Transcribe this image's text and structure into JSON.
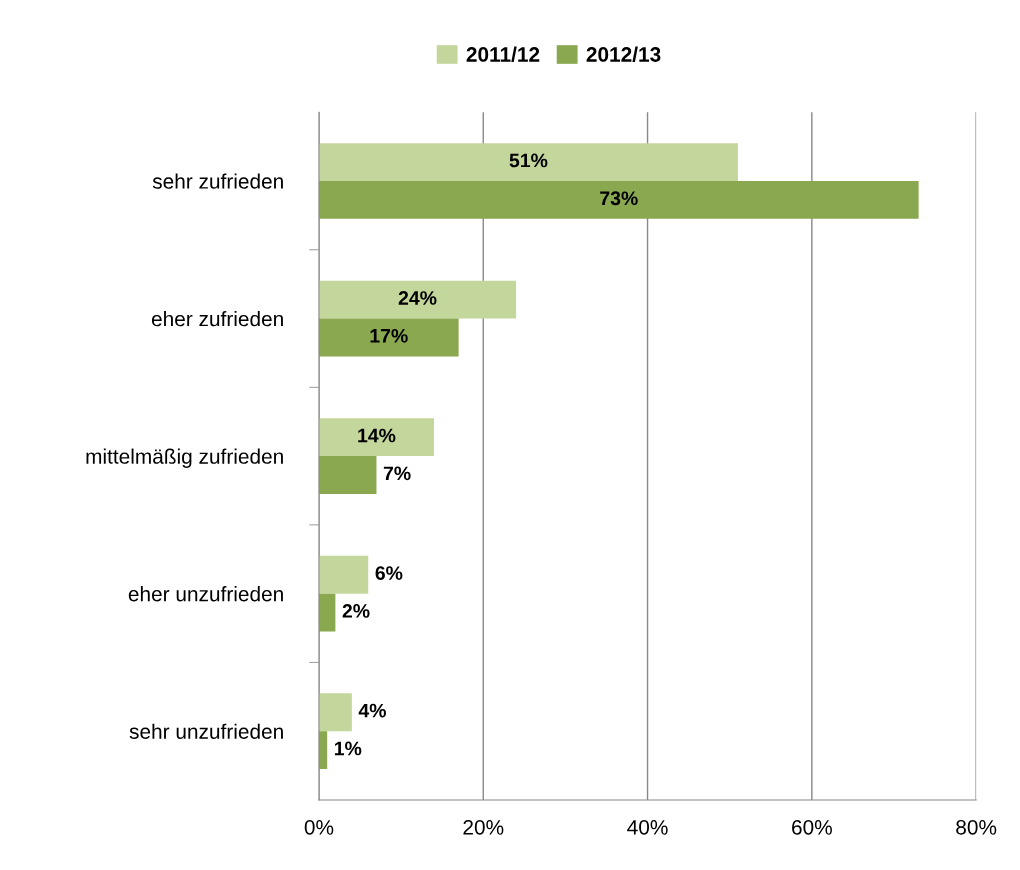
{
  "chart_data": {
    "type": "bar",
    "orientation": "horizontal",
    "categories": [
      "sehr zufrieden",
      "eher zufrieden",
      "mittelmäßig zufrieden",
      "eher unzufrieden",
      "sehr unzufrieden"
    ],
    "series": [
      {
        "name": "2011/12",
        "color": "#c3d69b",
        "values": [
          51,
          24,
          14,
          6,
          4
        ],
        "value_labels": [
          "51%",
          "24%",
          "14%",
          "6%",
          "4%"
        ]
      },
      {
        "name": "2012/13",
        "color": "#8aa84f",
        "values": [
          73,
          17,
          7,
          2,
          1
        ],
        "value_labels": [
          "73%",
          "17%",
          "7%",
          "2%",
          "1%"
        ]
      }
    ],
    "xlim": [
      0,
      80
    ],
    "xticks": [
      {
        "value": 0,
        "label": "0%"
      },
      {
        "value": 20,
        "label": "20%"
      },
      {
        "value": 40,
        "label": "40%"
      },
      {
        "value": 60,
        "label": "60%"
      },
      {
        "value": 80,
        "label": "80%"
      }
    ],
    "grid": "x",
    "legend": "top"
  }
}
